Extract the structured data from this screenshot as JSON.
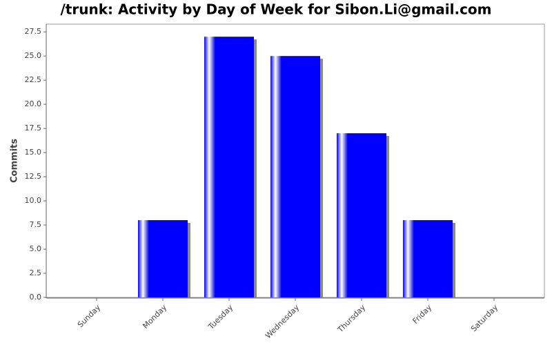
{
  "chart_data": {
    "type": "bar",
    "title": "/trunk: Activity by Day of Week for Sibon.Li@gmail.com",
    "y_label": "Commits",
    "categories": [
      "Sunday",
      "Monday",
      "Tuesday",
      "Wednesday",
      "Thursday",
      "Friday",
      "Saturday"
    ],
    "values": [
      0,
      8,
      27,
      25,
      17,
      8,
      0
    ],
    "color": "#0000ff",
    "ylim": [
      0,
      28.3
    ],
    "yticks": [
      {
        "value": 0,
        "label": "0.0"
      },
      2.5,
      {
        "value": 5,
        "label": "5.0"
      },
      7.5,
      {
        "value": 10,
        "label": "10.0"
      },
      12.5,
      {
        "value": 15,
        "label": "15.0"
      },
      17.5,
      {
        "value": 20,
        "label": "20.0"
      },
      22.5,
      {
        "value": 25,
        "label": "25.0"
      },
      27.5
    ],
    "grid": false
  }
}
